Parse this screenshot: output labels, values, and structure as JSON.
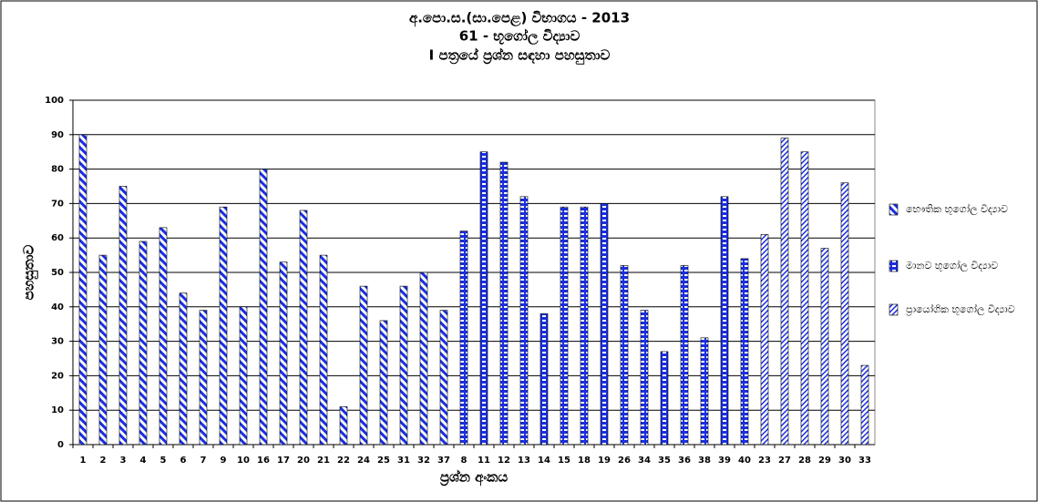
{
  "chart_data": {
    "type": "bar",
    "title": [
      "අ.පො.ස.(සා.පෙළ) විභාගය - 2013",
      "61 - භූගෝල විද්‍යාව",
      "I පත්‍රයේ ප්‍රශ්න සඳහා පහසුතාව"
    ],
    "x_label": "ප්‍රශ්න අංකය",
    "y_label": "පහසුතාව",
    "categories": [
      "1",
      "2",
      "3",
      "4",
      "5",
      "6",
      "7",
      "9",
      "10",
      "16",
      "17",
      "20",
      "21",
      "22",
      "24",
      "25",
      "31",
      "32",
      "37",
      "8",
      "11",
      "12",
      "13",
      "14",
      "15",
      "18",
      "19",
      "26",
      "34",
      "35",
      "36",
      "38",
      "39",
      "40",
      "23",
      "27",
      "28",
      "29",
      "30",
      "33"
    ],
    "series": [
      {
        "name": "භෞතික භූගෝල විද්‍යාව",
        "color": "#1a2fe0",
        "values": [
          90,
          55,
          75,
          59,
          63,
          44,
          39,
          69,
          40,
          80,
          53,
          68,
          55,
          11,
          46,
          36,
          46,
          50,
          39,
          null,
          null,
          null,
          null,
          null,
          null,
          null,
          null,
          null,
          null,
          null,
          null,
          null,
          null,
          null,
          null,
          null,
          null,
          null,
          null,
          null
        ]
      },
      {
        "name": "මානව භූගෝල විද්‍යාව",
        "color": "#1a2fe0",
        "values": [
          null,
          null,
          null,
          null,
          null,
          null,
          null,
          null,
          null,
          null,
          null,
          null,
          null,
          null,
          null,
          null,
          null,
          null,
          null,
          62,
          85,
          82,
          72,
          38,
          69,
          69,
          70,
          52,
          39,
          27,
          52,
          31,
          72,
          54,
          null,
          null,
          null,
          null,
          null,
          null
        ]
      },
      {
        "name": "ප්‍රායෝගික භූගෝල විද්‍යාව",
        "color": "#1a2fe0",
        "values": [
          null,
          null,
          null,
          null,
          null,
          null,
          null,
          null,
          null,
          null,
          null,
          null,
          null,
          null,
          null,
          null,
          null,
          null,
          null,
          null,
          null,
          null,
          null,
          null,
          null,
          null,
          null,
          null,
          null,
          null,
          null,
          null,
          null,
          null,
          61,
          89,
          85,
          57,
          76,
          23
        ]
      }
    ],
    "ylim": [
      0,
      100
    ],
    "yticks": [
      0,
      10,
      20,
      30,
      40,
      50,
      60,
      70,
      80,
      90,
      100
    ],
    "grid": true,
    "legend": "right"
  }
}
